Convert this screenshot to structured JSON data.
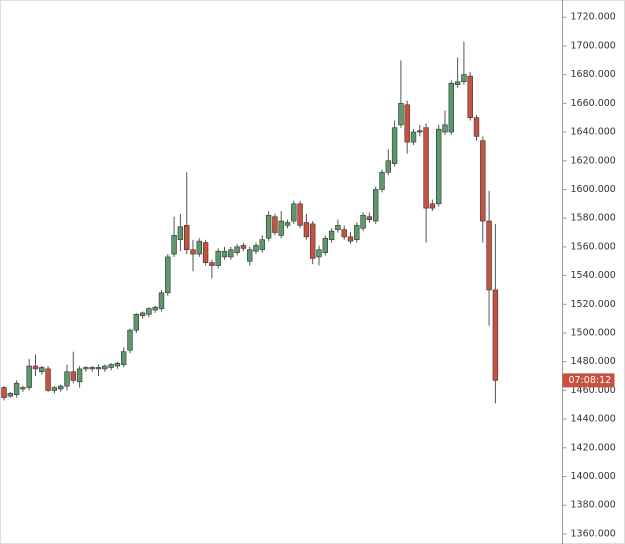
{
  "chart_data": {
    "type": "candlestick",
    "open": [
      1462,
      1456,
      1457,
      1461,
      1462,
      1477,
      1473,
      1475,
      1460,
      1461,
      1463,
      1473,
      1466,
      1475,
      1475,
      1475,
      1475,
      1476,
      1477,
      1478,
      1488,
      1502,
      1512,
      1513,
      1516,
      1517,
      1528,
      1555,
      1565,
      1575,
      1558,
      1555,
      1563,
      1549,
      1547,
      1553,
      1553,
      1556,
      1561,
      1550,
      1557,
      1558,
      1566,
      1581,
      1568,
      1575,
      1578,
      1590,
      1577,
      1576,
      1553,
      1556,
      1565,
      1572,
      1572,
      1567,
      1565,
      1573,
      1581,
      1578,
      1600,
      1612,
      1618,
      1645,
      1659,
      1633,
      1641,
      1643,
      1590,
      1590,
      1640,
      1640,
      1673,
      1675,
      1679,
      1650,
      1634,
      1578,
      1530
    ],
    "high": [
      1463,
      1459,
      1467,
      1463,
      1482,
      1485,
      1477,
      1477,
      1463,
      1464,
      1478,
      1487,
      1477,
      1477,
      1477,
      1478,
      1478,
      1479,
      1480,
      1490,
      1503,
      1514,
      1515,
      1518,
      1519,
      1530,
      1555,
      1581,
      1583,
      1612,
      1565,
      1566,
      1565,
      1551,
      1559,
      1560,
      1560,
      1562,
      1563,
      1560,
      1563,
      1568,
      1585,
      1583,
      1585,
      1579,
      1592,
      1592,
      1583,
      1578,
      1561,
      1568,
      1573,
      1579,
      1575,
      1570,
      1577,
      1584,
      1584,
      1602,
      1614,
      1628,
      1648,
      1690,
      1662,
      1642,
      1645,
      1646,
      1593,
      1645,
      1655,
      1676,
      1692,
      1703,
      1682,
      1652,
      1637,
      1599,
      1576
    ],
    "low": [
      1453,
      1455,
      1455,
      1459,
      1460,
      1470,
      1471,
      1459,
      1458,
      1459,
      1460,
      1465,
      1462,
      1473,
      1473,
      1470,
      1473,
      1474,
      1475,
      1476,
      1486,
      1500,
      1510,
      1511,
      1514,
      1515,
      1526,
      1553,
      1557,
      1555,
      1543,
      1553,
      1547,
      1538,
      1545,
      1551,
      1551,
      1554,
      1557,
      1547,
      1555,
      1556,
      1564,
      1568,
      1566,
      1573,
      1576,
      1573,
      1565,
      1548,
      1547,
      1554,
      1563,
      1570,
      1565,
      1562,
      1563,
      1571,
      1577,
      1576,
      1598,
      1610,
      1616,
      1643,
      1625,
      1631,
      1637,
      1563,
      1585,
      1588,
      1638,
      1638,
      1671,
      1673,
      1648,
      1634,
      1563,
      1505,
      1451
    ],
    "close": [
      1455,
      1458,
      1465,
      1462,
      1477,
      1475,
      1476,
      1460,
      1462,
      1463,
      1473,
      1467,
      1475,
      1476,
      1476,
      1476,
      1477,
      1478,
      1479,
      1487,
      1502,
      1513,
      1514,
      1517,
      1518,
      1528,
      1553,
      1568,
      1574,
      1558,
      1555,
      1564,
      1549,
      1547,
      1557,
      1557,
      1558,
      1560,
      1559,
      1558,
      1561,
      1565,
      1582,
      1570,
      1578,
      1577,
      1590,
      1575,
      1567,
      1552,
      1558,
      1566,
      1571,
      1575,
      1567,
      1564,
      1575,
      1582,
      1579,
      1600,
      1612,
      1620,
      1643,
      1660,
      1633,
      1640,
      1640,
      1587,
      1587,
      1642,
      1645,
      1674,
      1675,
      1680,
      1650,
      1637,
      1578,
      1530,
      1467
    ],
    "up_color": "#5d9a6a",
    "down_color": "#c8513f",
    "ylim": [
      1353,
      1732
    ],
    "yticks": [
      {
        "value": 1360,
        "label": "1360.000"
      },
      {
        "value": 1380,
        "label": "1380.000"
      },
      {
        "value": 1400,
        "label": "1400.000"
      },
      {
        "value": 1420,
        "label": "1420.000"
      },
      {
        "value": 1440,
        "label": "1440.000"
      },
      {
        "value": 1460,
        "label": "1460.000"
      },
      {
        "value": 1480,
        "label": "1480.000"
      },
      {
        "value": 1500,
        "label": "1500.000"
      },
      {
        "value": 1520,
        "label": "1520.000"
      },
      {
        "value": 1540,
        "label": "1540.000"
      },
      {
        "value": 1560,
        "label": "1560.000"
      },
      {
        "value": 1580,
        "label": "1580.000"
      },
      {
        "value": 1600,
        "label": "1600.000"
      },
      {
        "value": 1620,
        "label": "1620.000"
      },
      {
        "value": 1640,
        "label": "1640.000"
      },
      {
        "value": 1660,
        "label": "1660.000"
      },
      {
        "value": 1680,
        "label": "1680.000"
      },
      {
        "value": 1700,
        "label": "1700.000"
      },
      {
        "value": 1720,
        "label": "1720.000"
      }
    ],
    "countdown_label": "07:08:12"
  }
}
